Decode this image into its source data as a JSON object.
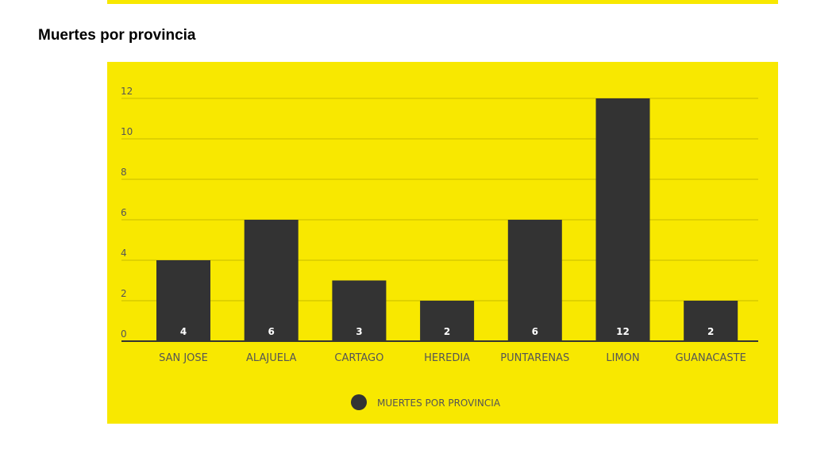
{
  "page": {
    "title": "Muertes por provincia"
  },
  "colors": {
    "panel": "#f8e800",
    "bar": "#333333",
    "grid": "#c9bb00",
    "axis_text": "#555555",
    "bar_text": "#ffffff"
  },
  "chart_data": {
    "type": "bar",
    "title": "",
    "xlabel": "",
    "ylabel": "",
    "categories": [
      "SAN JOSE",
      "ALAJUELA",
      "CARTAGO",
      "HEREDIA",
      "PUNTARENAS",
      "LIMON",
      "GUANACASTE"
    ],
    "series": [
      {
        "name": "MUERTES POR PROVINCIA",
        "values": [
          4,
          6,
          3,
          2,
          6,
          12,
          2
        ],
        "labels": [
          "4",
          "6",
          "3",
          "2",
          "6",
          "12",
          "2"
        ]
      }
    ],
    "ylim": [
      0,
      12
    ],
    "yticks": [
      0,
      2,
      4,
      6,
      8,
      10,
      12
    ],
    "ytick_labels": [
      "0",
      "2",
      "4",
      "6",
      "8",
      "10",
      "12"
    ],
    "grid": true,
    "legend": "bottom-center"
  }
}
